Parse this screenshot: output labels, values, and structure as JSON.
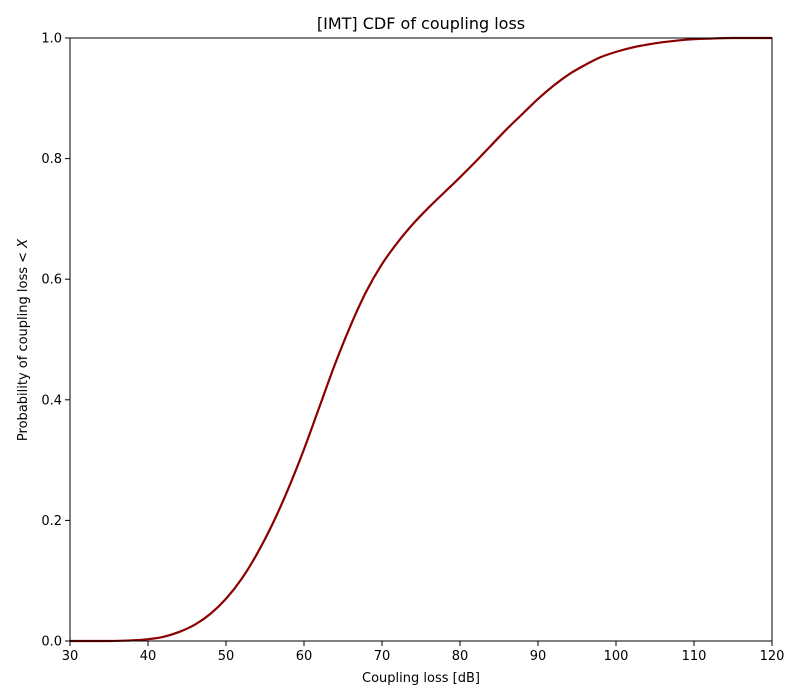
{
  "chart_data": {
    "type": "line",
    "title": "[IMT] CDF of coupling loss",
    "xlabel": "Coupling loss [dB]",
    "ylabel_prefix": "Probability of coupling loss < ",
    "ylabel_var": "X",
    "xlim": [
      30,
      120
    ],
    "ylim": [
      0,
      1
    ],
    "xticks": [
      30,
      40,
      50,
      60,
      70,
      80,
      90,
      100,
      110,
      120
    ],
    "yticks": [
      0.0,
      0.2,
      0.4,
      0.6,
      0.8,
      1.0
    ],
    "xtick_labels": [
      "30",
      "40",
      "50",
      "60",
      "70",
      "80",
      "90",
      "100",
      "110",
      "120"
    ],
    "ytick_labels": [
      "0.0",
      "0.2",
      "0.4",
      "0.6",
      "0.8",
      "1.0"
    ],
    "grid": false,
    "series": [
      {
        "color": "#8b0000",
        "x": [
          30,
          35,
          38,
          40,
          42,
          44,
          46,
          48,
          50,
          52,
          54,
          56,
          58,
          60,
          62,
          64,
          66,
          68,
          70,
          72,
          74,
          76,
          78,
          80,
          82,
          84,
          86,
          88,
          90,
          92,
          94,
          96,
          98,
          100,
          102,
          104,
          106,
          108,
          110,
          112,
          115,
          120
        ],
        "y": [
          0.0,
          0.0,
          0.001,
          0.003,
          0.007,
          0.015,
          0.027,
          0.045,
          0.07,
          0.103,
          0.145,
          0.195,
          0.253,
          0.318,
          0.389,
          0.46,
          0.524,
          0.58,
          0.625,
          0.661,
          0.692,
          0.719,
          0.744,
          0.769,
          0.795,
          0.822,
          0.849,
          0.874,
          0.899,
          0.921,
          0.94,
          0.955,
          0.968,
          0.977,
          0.984,
          0.989,
          0.993,
          0.996,
          0.998,
          0.999,
          1.0,
          1.0
        ]
      }
    ]
  }
}
